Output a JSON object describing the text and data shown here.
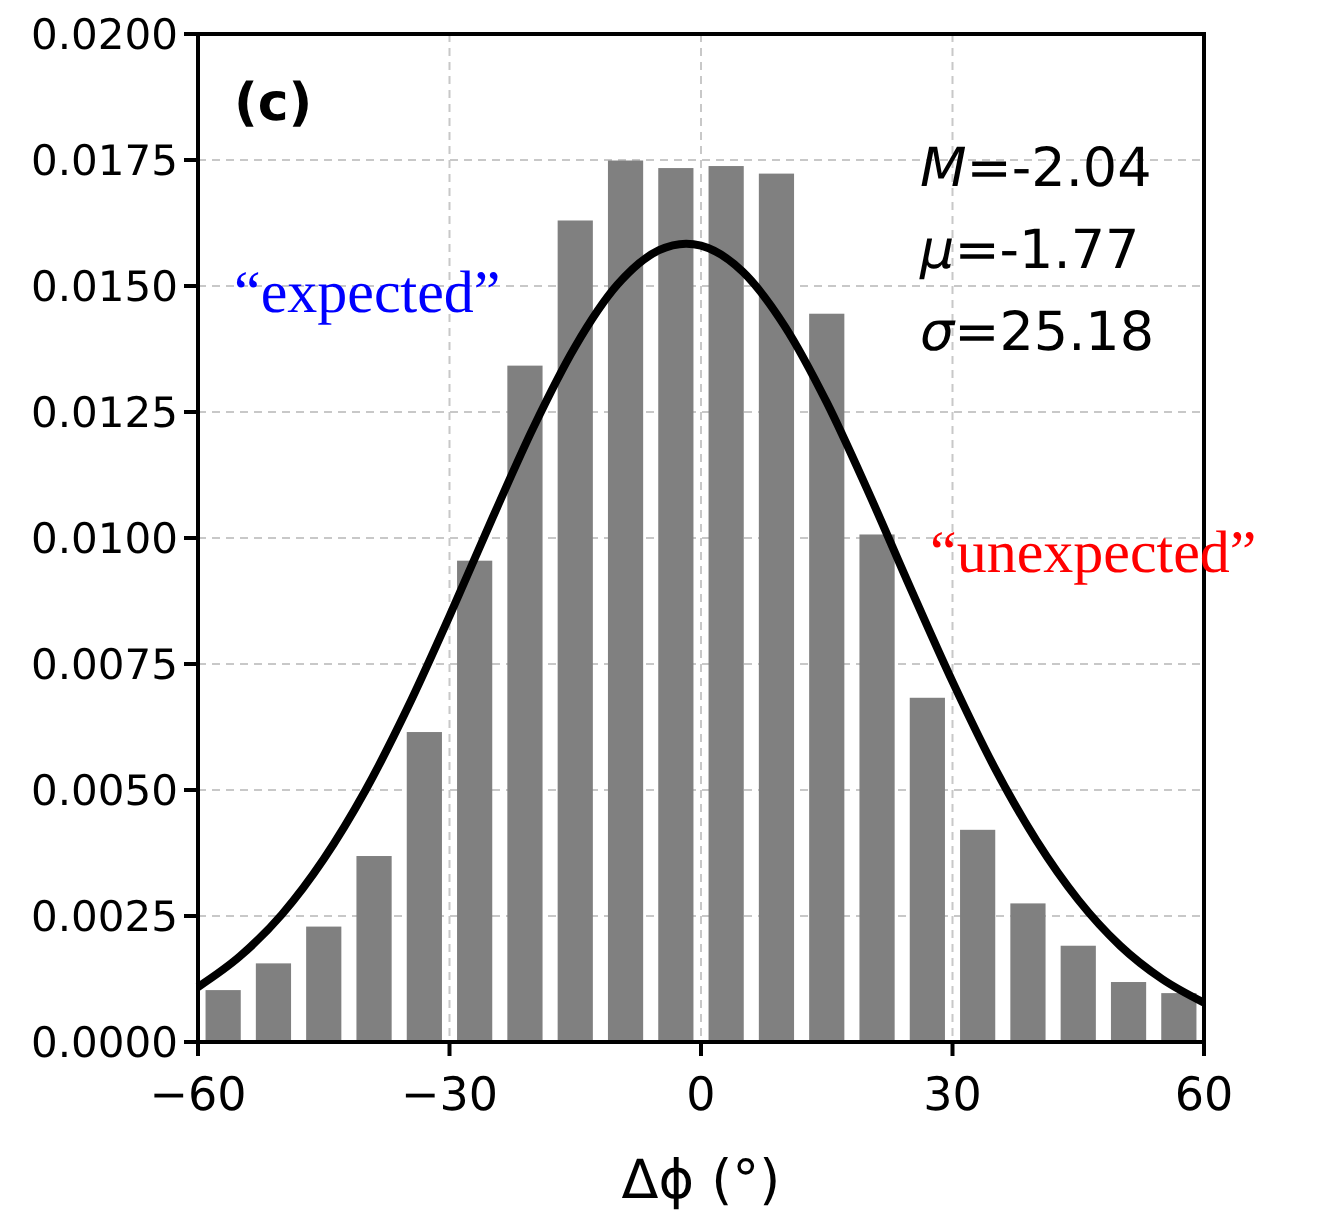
{
  "chart_data": {
    "type": "histogram",
    "xlabel": "Δϕ (°)",
    "series": [
      {
        "color": "#808080",
        "bins": [
          -60,
          -54,
          -48,
          -42,
          -36,
          -30,
          -24,
          -18,
          -12,
          -6,
          0,
          6,
          12,
          18,
          24,
          30,
          36,
          42,
          48,
          54,
          60
        ],
        "values": [
          0.00103,
          0.00156,
          0.00229,
          0.00369,
          0.00615,
          0.00955,
          0.01342,
          0.0163,
          0.01749,
          0.01734,
          0.01738,
          0.01723,
          0.01445,
          0.01007,
          0.00683,
          0.00421,
          0.00275,
          0.00191,
          0.00119,
          0.00097
        ]
      },
      {
        "type": "line",
        "color": "#000000",
        "x": [
          -60,
          -55,
          -50,
          -45,
          -40,
          -35,
          -30,
          -25,
          -20,
          -15,
          -10,
          -5,
          -1.77,
          0,
          5,
          10,
          15,
          20,
          25,
          30,
          35,
          40,
          45,
          50,
          55,
          60
        ],
        "values": [
          0.00109,
          0.0017,
          0.00253,
          0.00363,
          0.005,
          0.00663,
          0.00845,
          0.01035,
          0.01219,
          0.0138,
          0.01502,
          0.01571,
          0.01584,
          0.0158,
          0.01528,
          0.0142,
          0.01269,
          0.0109,
          0.009,
          0.00715,
          0.00545,
          0.004,
          0.00282,
          0.00191,
          0.00125,
          0.00078
        ]
      }
    ],
    "xlim": [
      -60,
      60
    ],
    "xticks": [
      {
        "value": -60,
        "label": "−60"
      },
      {
        "value": -30,
        "label": "−30"
      },
      0,
      30,
      60
    ],
    "ylim": [
      0,
      0.02
    ],
    "yticks": [
      {
        "value": 0,
        "label": "0.0000"
      },
      {
        "value": 0.0025,
        "label": "0.0025"
      },
      {
        "value": 0.005,
        "label": "0.0050"
      },
      {
        "value": 0.0075,
        "label": "0.0075"
      },
      {
        "value": 0.01,
        "label": "0.0100"
      },
      {
        "value": 0.0125,
        "label": "0.0125"
      },
      {
        "value": 0.015,
        "label": "0.0150"
      },
      {
        "value": 0.0175,
        "label": "0.0175"
      },
      {
        "value": 0.02,
        "label": "0.0200"
      }
    ],
    "grid": true,
    "line_style": "solid",
    "marker": "none",
    "annotations": [
      "(c)",
      "M=-2.04",
      "μ=-1.77",
      "σ=25.18",
      "“expected”",
      "“unexpected”"
    ]
  }
}
